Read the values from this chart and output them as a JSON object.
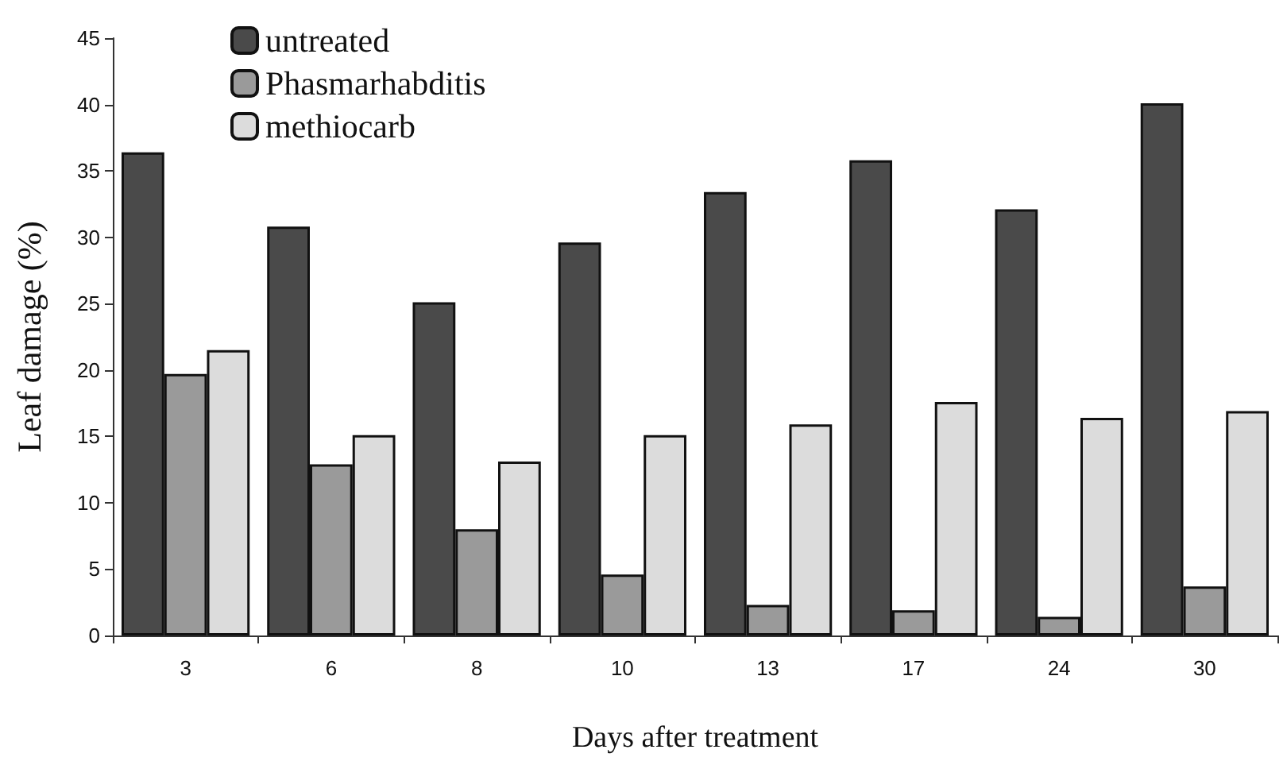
{
  "chart_data": {
    "type": "bar",
    "xlabel": "Days after treatment",
    "ylabel": "Leaf damage (%)",
    "categories": [
      "3",
      "6",
      "8",
      "10",
      "13",
      "17",
      "24",
      "30"
    ],
    "series": [
      {
        "name": "untreated",
        "color": "#4a4a4a",
        "values": [
          36.4,
          30.8,
          25.1,
          29.6,
          33.4,
          35.8,
          32.1,
          40.1
        ]
      },
      {
        "name": "Phasmarhabditis",
        "color": "#9a9a9a",
        "values": [
          19.7,
          12.9,
          8.0,
          4.6,
          2.3,
          1.9,
          1.4,
          3.7
        ]
      },
      {
        "name": "methiocarb",
        "color": "#dcdcdc",
        "values": [
          21.5,
          15.1,
          13.1,
          15.1,
          15.9,
          17.6,
          16.4,
          16.9
        ]
      }
    ],
    "ylim": [
      0,
      45
    ],
    "yticks": [
      0,
      5,
      10,
      15,
      20,
      25,
      30,
      35,
      40,
      45
    ],
    "grid": false,
    "legend": "top left"
  }
}
